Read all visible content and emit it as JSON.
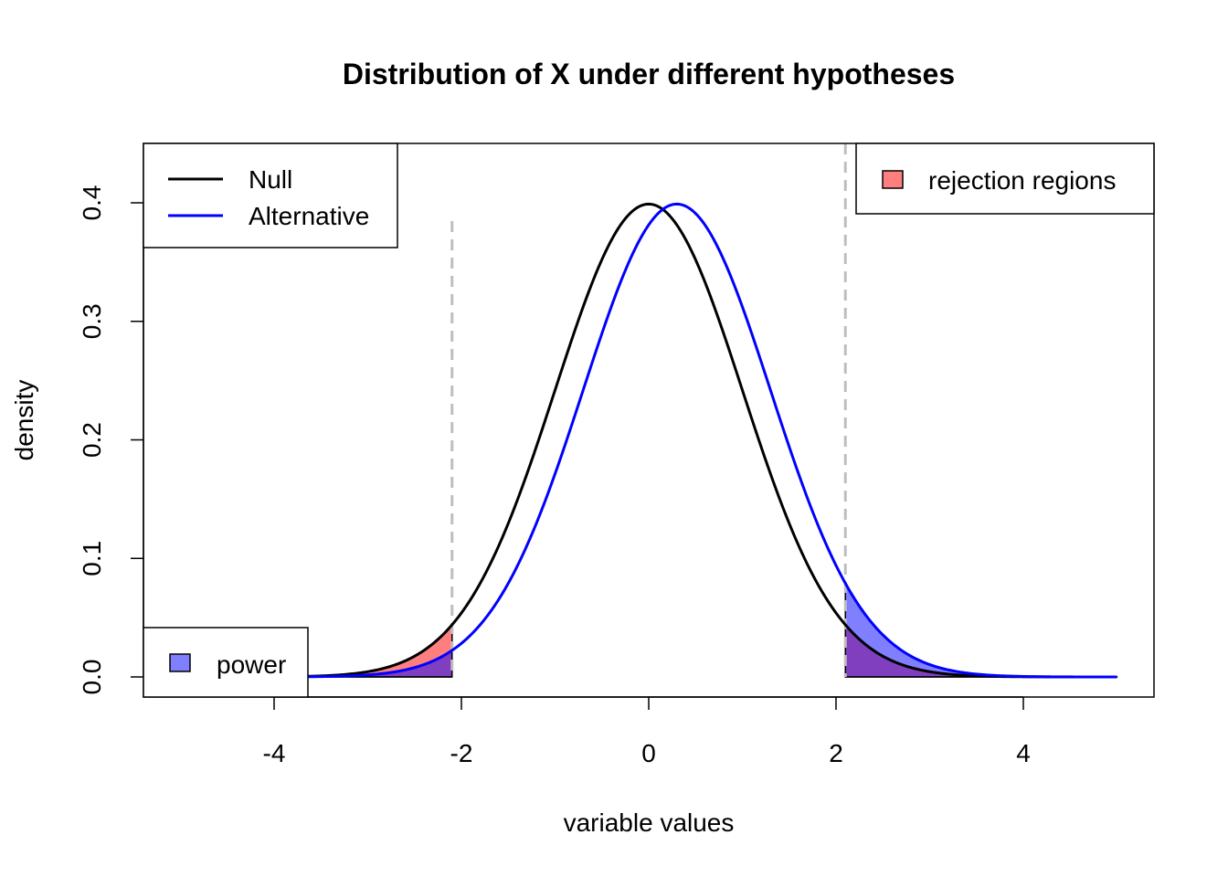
{
  "chart_data": {
    "type": "line",
    "title": "Distribution of X under different hypotheses",
    "xlabel": "variable values",
    "ylabel": "density",
    "xlim": [
      -5,
      5
    ],
    "ylim": [
      0,
      0.45
    ],
    "x_ticks": [
      -4,
      -2,
      0,
      2,
      4
    ],
    "x_tick_labels": [
      "-4",
      "-2",
      "0",
      "2",
      "4"
    ],
    "y_ticks": [
      0.0,
      0.1,
      0.2,
      0.3,
      0.4
    ],
    "y_tick_labels": [
      "0.0",
      "0.1",
      "0.2",
      "0.3",
      "0.4"
    ],
    "grid": false,
    "critical_values": [
      -2.1,
      2.1
    ],
    "series": [
      {
        "name": "Null",
        "distribution": "normal",
        "mean": 0,
        "sd": 1,
        "x_range": [
          -3.7,
          5
        ],
        "color": "#000000"
      },
      {
        "name": "Alternative",
        "distribution": "normal",
        "mean": 0.3,
        "sd": 1,
        "x_range": [
          -3.7,
          5
        ],
        "color": "#0000ff"
      }
    ],
    "shaded_regions": [
      {
        "label": "rejection regions",
        "under": "Null",
        "ranges": [
          [
            -3.7,
            -2.1
          ],
          [
            2.1,
            5
          ]
        ],
        "color": "#ff0000",
        "opacity": 0.5
      },
      {
        "label": "power",
        "under": "Alternative",
        "ranges": [
          [
            -3.7,
            -2.1
          ],
          [
            2.1,
            5
          ]
        ],
        "color": "#0000ff",
        "opacity": 0.5
      }
    ],
    "legends": [
      {
        "position": "top-left",
        "items": [
          {
            "label": "Null",
            "kind": "line",
            "color": "#000000"
          },
          {
            "label": "Alternative",
            "kind": "line",
            "color": "#0000ff"
          }
        ]
      },
      {
        "position": "top-right",
        "items": [
          {
            "label": "rejection regions",
            "kind": "box",
            "color": "#ff7f7f"
          }
        ]
      },
      {
        "position": "bottom-left",
        "items": [
          {
            "label": "power",
            "kind": "box",
            "color": "#7f7fff"
          }
        ]
      }
    ]
  }
}
